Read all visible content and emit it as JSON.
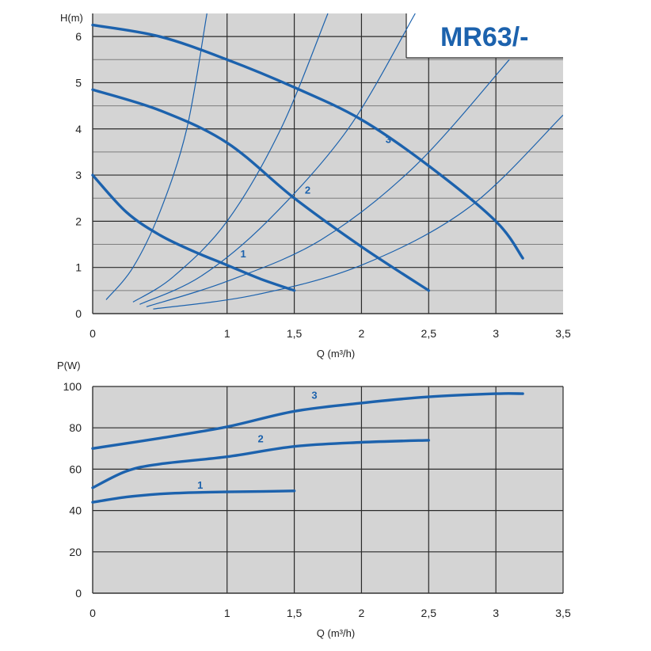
{
  "colors": {
    "panel": "#d4d4d4",
    "grid_major": "#2a2a2a",
    "grid_minor": "#7d7d7d",
    "curve": "#1c62ad",
    "title": "#1c62ad"
  },
  "chart_data": [
    {
      "type": "line",
      "title": "MR63/-",
      "xlabel": "Q (m³/h)",
      "ylabel": "H(m)",
      "xlim": [
        0,
        3.5
      ],
      "ylim": [
        0,
        6.5
      ],
      "xticks": [
        "0",
        "1",
        "1,5",
        "2",
        "2,5",
        "3",
        "3,5"
      ],
      "xtick_values": [
        0,
        1,
        1.5,
        2,
        2.5,
        3,
        3.5
      ],
      "yticks": [
        "0",
        "1",
        "2",
        "3",
        "4",
        "5",
        "6"
      ],
      "grid": true,
      "series": [
        {
          "name": "1",
          "x": [
            0,
            0.25,
            0.5,
            0.75,
            1.0,
            1.25,
            1.5
          ],
          "y": [
            3.0,
            2.2,
            1.7,
            1.35,
            1.05,
            0.75,
            0.5
          ],
          "label_at": [
            1.12,
            1.22
          ]
        },
        {
          "name": "2",
          "x": [
            0,
            0.5,
            1.0,
            1.5,
            2.0,
            2.5
          ],
          "y": [
            4.85,
            4.4,
            3.7,
            2.5,
            1.45,
            0.5
          ],
          "label_at": [
            1.6,
            2.6
          ]
        },
        {
          "name": "3",
          "x": [
            0,
            0.5,
            1.0,
            1.5,
            2.0,
            2.5,
            3.0,
            3.2
          ],
          "y": [
            6.25,
            6.0,
            5.5,
            4.9,
            4.2,
            3.2,
            2.0,
            1.2
          ],
          "label_at": [
            2.2,
            3.7
          ]
        }
      ],
      "system_curves": [
        {
          "x": [
            0.1,
            0.3,
            0.5,
            0.7,
            0.85
          ],
          "y": [
            0.3,
            1.0,
            2.2,
            4.0,
            6.5
          ]
        },
        {
          "x": [
            0.3,
            0.6,
            1.0,
            1.4,
            1.75
          ],
          "y": [
            0.25,
            0.8,
            2.0,
            4.0,
            6.5
          ]
        },
        {
          "x": [
            0.35,
            0.8,
            1.3,
            1.9,
            2.4
          ],
          "y": [
            0.2,
            0.8,
            2.0,
            4.0,
            6.5
          ]
        },
        {
          "x": [
            0.4,
            1.0,
            1.7,
            2.4,
            3.1
          ],
          "y": [
            0.15,
            0.7,
            1.6,
            3.2,
            5.5
          ]
        },
        {
          "x": [
            0.45,
            1.2,
            2.0,
            2.8,
            3.5
          ],
          "y": [
            0.1,
            0.4,
            1.05,
            2.3,
            4.3
          ]
        }
      ]
    },
    {
      "type": "line",
      "xlabel": "Q (m³/h)",
      "ylabel": "P(W)",
      "xlim": [
        0,
        3.5
      ],
      "ylim": [
        0,
        100
      ],
      "xticks": [
        "0",
        "1",
        "1,5",
        "2",
        "2,5",
        "3",
        "3,5"
      ],
      "xtick_values": [
        0,
        1,
        1.5,
        2,
        2.5,
        3,
        3.5
      ],
      "yticks": [
        "0",
        "20",
        "40",
        "60",
        "80",
        "100"
      ],
      "ytick_values": [
        0,
        20,
        40,
        60,
        80,
        100
      ],
      "grid": true,
      "series": [
        {
          "name": "1",
          "x": [
            0,
            0.25,
            0.5,
            0.75,
            1.0,
            1.25,
            1.5
          ],
          "y": [
            44,
            46.5,
            48,
            48.7,
            49,
            49.2,
            49.5
          ],
          "label_at": [
            0.8,
            50.5
          ]
        },
        {
          "name": "2",
          "x": [
            0,
            0.25,
            0.5,
            1.0,
            1.5,
            2.0,
            2.5
          ],
          "y": [
            51,
            59,
            62.5,
            66,
            71,
            73,
            74
          ],
          "label_at": [
            1.25,
            73
          ]
        },
        {
          "name": "3",
          "x": [
            0,
            0.5,
            1.0,
            1.5,
            2.0,
            2.5,
            3.0,
            3.2
          ],
          "y": [
            70,
            75,
            80.5,
            88,
            92,
            95,
            96.5,
            96.5
          ],
          "label_at": [
            1.65,
            94
          ]
        }
      ]
    }
  ]
}
